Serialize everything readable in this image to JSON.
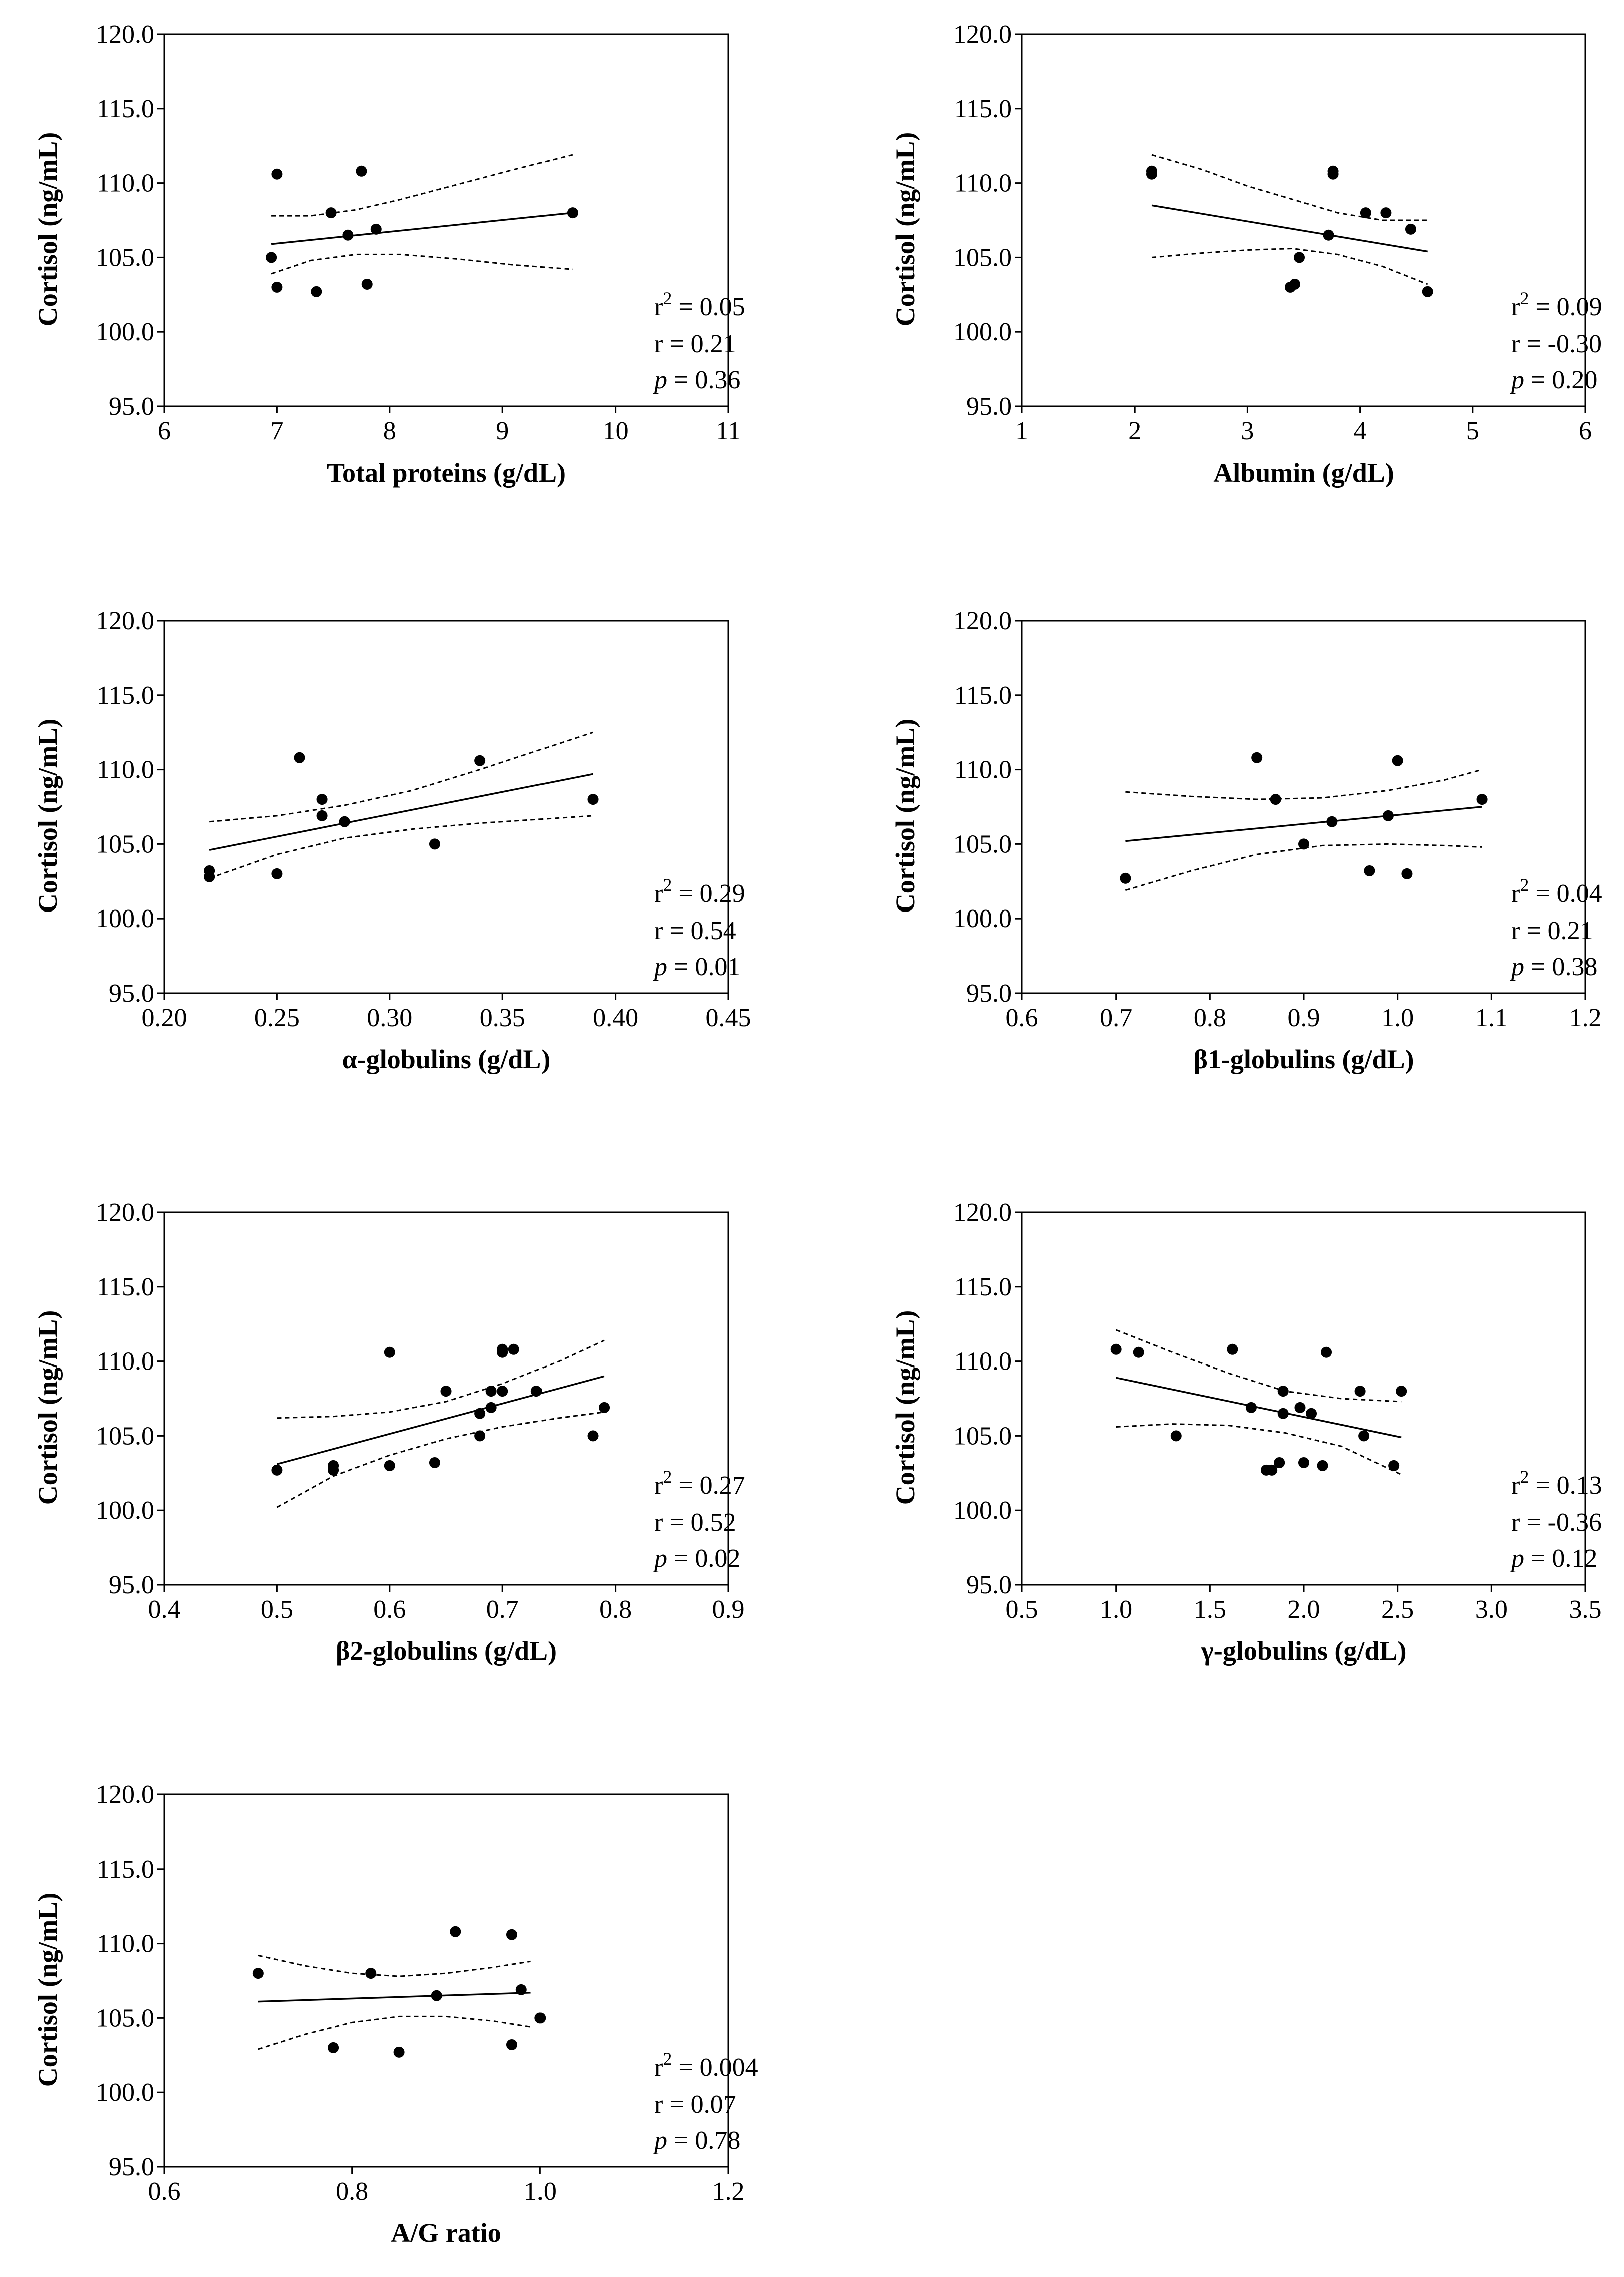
{
  "figure": {
    "background": "#ffffff",
    "ink": "#000000"
  },
  "chart_data": [
    {
      "type": "scatter",
      "xlabel": "Total proteins (g/dL)",
      "ylabel": "Cortisol (ng/mL)",
      "xlim": [
        6,
        11
      ],
      "xticks": [
        "6",
        "7",
        "8",
        "9",
        "10",
        "11"
      ],
      "ylim": [
        95,
        120
      ],
      "yticks": [
        "95.0",
        "100.0",
        "105.0",
        "110.0",
        "115.0",
        "120.0"
      ],
      "points": [
        [
          6.95,
          105.0
        ],
        [
          7.0,
          110.6
        ],
        [
          7.0,
          103.0
        ],
        [
          7.35,
          102.7
        ],
        [
          7.48,
          108.0
        ],
        [
          7.63,
          106.5
        ],
        [
          7.75,
          110.8
        ],
        [
          7.8,
          103.2
        ],
        [
          7.88,
          106.9
        ],
        [
          9.62,
          108.0
        ]
      ],
      "fit": {
        "x": [
          6.95,
          9.62
        ],
        "y": [
          105.9,
          108.0
        ]
      },
      "ci_upper": {
        "x": [
          6.95,
          7.3,
          7.7,
          8.1,
          8.6,
          9.1,
          9.62
        ],
        "y": [
          107.8,
          107.8,
          108.2,
          108.9,
          109.9,
          110.9,
          111.9
        ]
      },
      "ci_lower": {
        "x": [
          6.95,
          7.3,
          7.7,
          8.1,
          8.6,
          9.1,
          9.62
        ],
        "y": [
          103.9,
          104.8,
          105.2,
          105.2,
          104.9,
          104.5,
          104.2
        ]
      },
      "stats": {
        "r2_symbol": "r",
        "r2_exp": "2",
        "r2_value": " = 0.05",
        "r": "r = 0.21",
        "p_symbol": "p",
        "p_value": " = 0.36"
      }
    },
    {
      "type": "scatter",
      "xlabel": "Albumin (g/dL)",
      "ylabel": "Cortisol (ng/mL)",
      "xlim": [
        1,
        6
      ],
      "xticks": [
        "1",
        "2",
        "3",
        "4",
        "5",
        "6"
      ],
      "ylim": [
        95,
        120
      ],
      "yticks": [
        "95.0",
        "100.0",
        "105.0",
        "110.0",
        "115.0",
        "120.0"
      ],
      "points": [
        [
          2.15,
          110.8
        ],
        [
          2.15,
          110.6
        ],
        [
          3.38,
          103.0
        ],
        [
          3.42,
          103.2
        ],
        [
          3.46,
          105.0
        ],
        [
          3.72,
          106.5
        ],
        [
          3.76,
          110.8
        ],
        [
          3.76,
          110.6
        ],
        [
          4.05,
          108.0
        ],
        [
          4.23,
          108.0
        ],
        [
          4.45,
          106.9
        ],
        [
          4.6,
          102.7
        ]
      ],
      "fit": {
        "x": [
          2.15,
          4.6
        ],
        "y": [
          108.5,
          105.4
        ]
      },
      "ci_upper": {
        "x": [
          2.15,
          2.6,
          3.0,
          3.4,
          3.8,
          4.2,
          4.6
        ],
        "y": [
          111.9,
          110.9,
          109.8,
          108.9,
          108.0,
          107.5,
          107.5
        ]
      },
      "ci_lower": {
        "x": [
          2.15,
          2.6,
          3.0,
          3.4,
          3.8,
          4.2,
          4.6
        ],
        "y": [
          105.0,
          105.3,
          105.5,
          105.6,
          105.2,
          104.4,
          103.2
        ]
      },
      "stats": {
        "r2_symbol": "r",
        "r2_exp": "2",
        "r2_value": " = 0.09",
        "r": "r = -0.30",
        "p_symbol": "p",
        "p_value": " = 0.20"
      }
    },
    {
      "type": "scatter",
      "xlabel": "α-globulins (g/dL)",
      "ylabel": "Cortisol (ng/mL)",
      "xlim": [
        0.2,
        0.45
      ],
      "xticks": [
        "0.20",
        "0.25",
        "0.30",
        "0.35",
        "0.40",
        "0.45"
      ],
      "ylim": [
        95,
        120
      ],
      "yticks": [
        "95.0",
        "100.0",
        "105.0",
        "110.0",
        "115.0",
        "120.0"
      ],
      "points": [
        [
          0.22,
          103.2
        ],
        [
          0.22,
          102.8
        ],
        [
          0.25,
          103.0
        ],
        [
          0.26,
          110.8
        ],
        [
          0.27,
          108.0
        ],
        [
          0.27,
          106.9
        ],
        [
          0.28,
          106.5
        ],
        [
          0.32,
          105.0
        ],
        [
          0.34,
          110.6
        ],
        [
          0.39,
          108.0
        ]
      ],
      "fit": {
        "x": [
          0.22,
          0.39
        ],
        "y": [
          104.6,
          109.7
        ]
      },
      "ci_upper": {
        "x": [
          0.22,
          0.25,
          0.28,
          0.31,
          0.34,
          0.37,
          0.39
        ],
        "y": [
          106.5,
          106.9,
          107.6,
          108.6,
          110.0,
          111.5,
          112.5
        ]
      },
      "ci_lower": {
        "x": [
          0.22,
          0.25,
          0.28,
          0.31,
          0.34,
          0.37,
          0.39
        ],
        "y": [
          102.7,
          104.3,
          105.4,
          106.0,
          106.4,
          106.7,
          106.9
        ]
      },
      "stats": {
        "r2_symbol": "r",
        "r2_exp": "2",
        "r2_value": " = 0.29",
        "r": "r = 0.54",
        "p_symbol": "p",
        "p_value": " = 0.01"
      }
    },
    {
      "type": "scatter",
      "xlabel": "β1-globulins (g/dL)",
      "ylabel": "Cortisol (ng/mL)",
      "xlim": [
        0.6,
        1.2
      ],
      "xticks": [
        "0.6",
        "0.7",
        "0.8",
        "0.9",
        "1.0",
        "1.1",
        "1.2"
      ],
      "ylim": [
        95,
        120
      ],
      "yticks": [
        "95.0",
        "100.0",
        "105.0",
        "110.0",
        "115.0",
        "120.0"
      ],
      "points": [
        [
          0.71,
          102.7
        ],
        [
          0.85,
          110.8
        ],
        [
          0.87,
          108.0
        ],
        [
          0.9,
          105.0
        ],
        [
          0.93,
          106.5
        ],
        [
          0.97,
          103.2
        ],
        [
          0.99,
          106.9
        ],
        [
          1.0,
          110.6
        ],
        [
          1.01,
          103.0
        ],
        [
          1.09,
          108.0
        ]
      ],
      "fit": {
        "x": [
          0.71,
          1.09
        ],
        "y": [
          105.2,
          107.5
        ]
      },
      "ci_upper": {
        "x": [
          0.71,
          0.78,
          0.85,
          0.92,
          0.99,
          1.05,
          1.09
        ],
        "y": [
          108.5,
          108.2,
          108.0,
          108.1,
          108.6,
          109.3,
          110.0
        ]
      },
      "ci_lower": {
        "x": [
          0.71,
          0.78,
          0.85,
          0.92,
          0.99,
          1.05,
          1.09
        ],
        "y": [
          101.9,
          103.2,
          104.3,
          104.9,
          105.0,
          104.9,
          104.8
        ]
      },
      "stats": {
        "r2_symbol": "r",
        "r2_exp": "2",
        "r2_value": " = 0.04",
        "r": "r = 0.21",
        "p_symbol": "p",
        "p_value": " = 0.38"
      }
    },
    {
      "type": "scatter",
      "xlabel": "β2-globulins (g/dL)",
      "ylabel": "Cortisol (ng/mL)",
      "xlim": [
        0.4,
        0.9
      ],
      "xticks": [
        "0.4",
        "0.5",
        "0.6",
        "0.7",
        "0.8",
        "0.9"
      ],
      "ylim": [
        95,
        120
      ],
      "yticks": [
        "95.0",
        "100.0",
        "105.0",
        "110.0",
        "115.0",
        "120.0"
      ],
      "points": [
        [
          0.5,
          102.7
        ],
        [
          0.55,
          103.0
        ],
        [
          0.55,
          102.7
        ],
        [
          0.6,
          110.6
        ],
        [
          0.6,
          103.0
        ],
        [
          0.64,
          103.2
        ],
        [
          0.65,
          108.0
        ],
        [
          0.68,
          106.5
        ],
        [
          0.68,
          105.0
        ],
        [
          0.69,
          108.0
        ],
        [
          0.69,
          106.9
        ],
        [
          0.7,
          110.8
        ],
        [
          0.7,
          110.6
        ],
        [
          0.7,
          108.0
        ],
        [
          0.71,
          110.8
        ],
        [
          0.73,
          108.0
        ],
        [
          0.78,
          105.0
        ],
        [
          0.79,
          106.9
        ]
      ],
      "fit": {
        "x": [
          0.5,
          0.79
        ],
        "y": [
          103.1,
          109.0
        ]
      },
      "ci_upper": {
        "x": [
          0.5,
          0.55,
          0.6,
          0.65,
          0.7,
          0.75,
          0.79
        ],
        "y": [
          106.2,
          106.3,
          106.6,
          107.3,
          108.5,
          110.0,
          111.4
        ]
      },
      "ci_lower": {
        "x": [
          0.5,
          0.55,
          0.6,
          0.65,
          0.7,
          0.75,
          0.79
        ],
        "y": [
          100.2,
          102.3,
          103.7,
          104.8,
          105.6,
          106.2,
          106.6
        ]
      },
      "stats": {
        "r2_symbol": "r",
        "r2_exp": "2",
        "r2_value": " = 0.27",
        "r": "r = 0.52",
        "p_symbol": "p",
        "p_value": " = 0.02"
      }
    },
    {
      "type": "scatter",
      "xlabel": "γ-globulins (g/dL)",
      "ylabel": "Cortisol (ng/mL)",
      "xlim": [
        0.5,
        3.5
      ],
      "xticks": [
        "0.5",
        "1.0",
        "1.5",
        "2.0",
        "2.5",
        "3.0",
        "3.5"
      ],
      "ylim": [
        95,
        120
      ],
      "yticks": [
        "95.0",
        "100.0",
        "105.0",
        "110.0",
        "115.0",
        "120.0"
      ],
      "points": [
        [
          1.0,
          110.8
        ],
        [
          1.12,
          110.6
        ],
        [
          1.32,
          105.0
        ],
        [
          1.62,
          110.8
        ],
        [
          1.72,
          106.9
        ],
        [
          1.8,
          102.7
        ],
        [
          1.83,
          102.7
        ],
        [
          1.87,
          103.2
        ],
        [
          1.89,
          108.0
        ],
        [
          1.89,
          106.5
        ],
        [
          1.98,
          106.9
        ],
        [
          2.0,
          103.2
        ],
        [
          2.04,
          106.5
        ],
        [
          2.1,
          103.0
        ],
        [
          2.12,
          110.6
        ],
        [
          2.3,
          108.0
        ],
        [
          2.32,
          105.0
        ],
        [
          2.48,
          103.0
        ],
        [
          2.52,
          108.0
        ]
      ],
      "fit": {
        "x": [
          1.0,
          2.52
        ],
        "y": [
          108.9,
          104.9
        ]
      },
      "ci_upper": {
        "x": [
          1.0,
          1.3,
          1.6,
          1.9,
          2.2,
          2.52
        ],
        "y": [
          112.1,
          110.6,
          109.2,
          108.0,
          107.5,
          107.3
        ]
      },
      "ci_lower": {
        "x": [
          1.0,
          1.3,
          1.6,
          1.9,
          2.2,
          2.52
        ],
        "y": [
          105.6,
          105.8,
          105.7,
          105.2,
          104.3,
          102.4
        ]
      },
      "stats": {
        "r2_symbol": "r",
        "r2_exp": "2",
        "r2_value": " = 0.13",
        "r": "r = -0.36",
        "p_symbol": "p",
        "p_value": " = 0.12"
      }
    },
    {
      "type": "scatter",
      "xlabel": "A/G ratio",
      "ylabel": "Cortisol (ng/mL)",
      "xlim": [
        0.6,
        1.2
      ],
      "xticks": [
        "0.6",
        "0.8",
        "1.0",
        "1.2"
      ],
      "ylim": [
        95,
        120
      ],
      "yticks": [
        "95.0",
        "100.0",
        "105.0",
        "110.0",
        "115.0",
        "120.0"
      ],
      "points": [
        [
          0.7,
          108.0
        ],
        [
          0.78,
          103.0
        ],
        [
          0.82,
          108.0
        ],
        [
          0.85,
          102.7
        ],
        [
          0.89,
          106.5
        ],
        [
          0.91,
          110.8
        ],
        [
          0.97,
          110.6
        ],
        [
          0.97,
          103.2
        ],
        [
          0.98,
          106.9
        ],
        [
          1.0,
          105.0
        ]
      ],
      "fit": {
        "x": [
          0.7,
          0.99
        ],
        "y": [
          106.1,
          106.7
        ]
      },
      "ci_upper": {
        "x": [
          0.7,
          0.75,
          0.8,
          0.85,
          0.9,
          0.95,
          0.99
        ],
        "y": [
          109.2,
          108.5,
          108.0,
          107.8,
          108.0,
          108.4,
          108.8
        ]
      },
      "ci_lower": {
        "x": [
          0.7,
          0.75,
          0.8,
          0.85,
          0.9,
          0.95,
          0.99
        ],
        "y": [
          102.9,
          103.9,
          104.7,
          105.1,
          105.1,
          104.8,
          104.4
        ]
      },
      "stats": {
        "r2_symbol": "r",
        "r2_exp": "2",
        "r2_value": " = 0.004",
        "r": "r = 0.07",
        "p_symbol": "p",
        "p_value": " = 0.78"
      }
    }
  ]
}
